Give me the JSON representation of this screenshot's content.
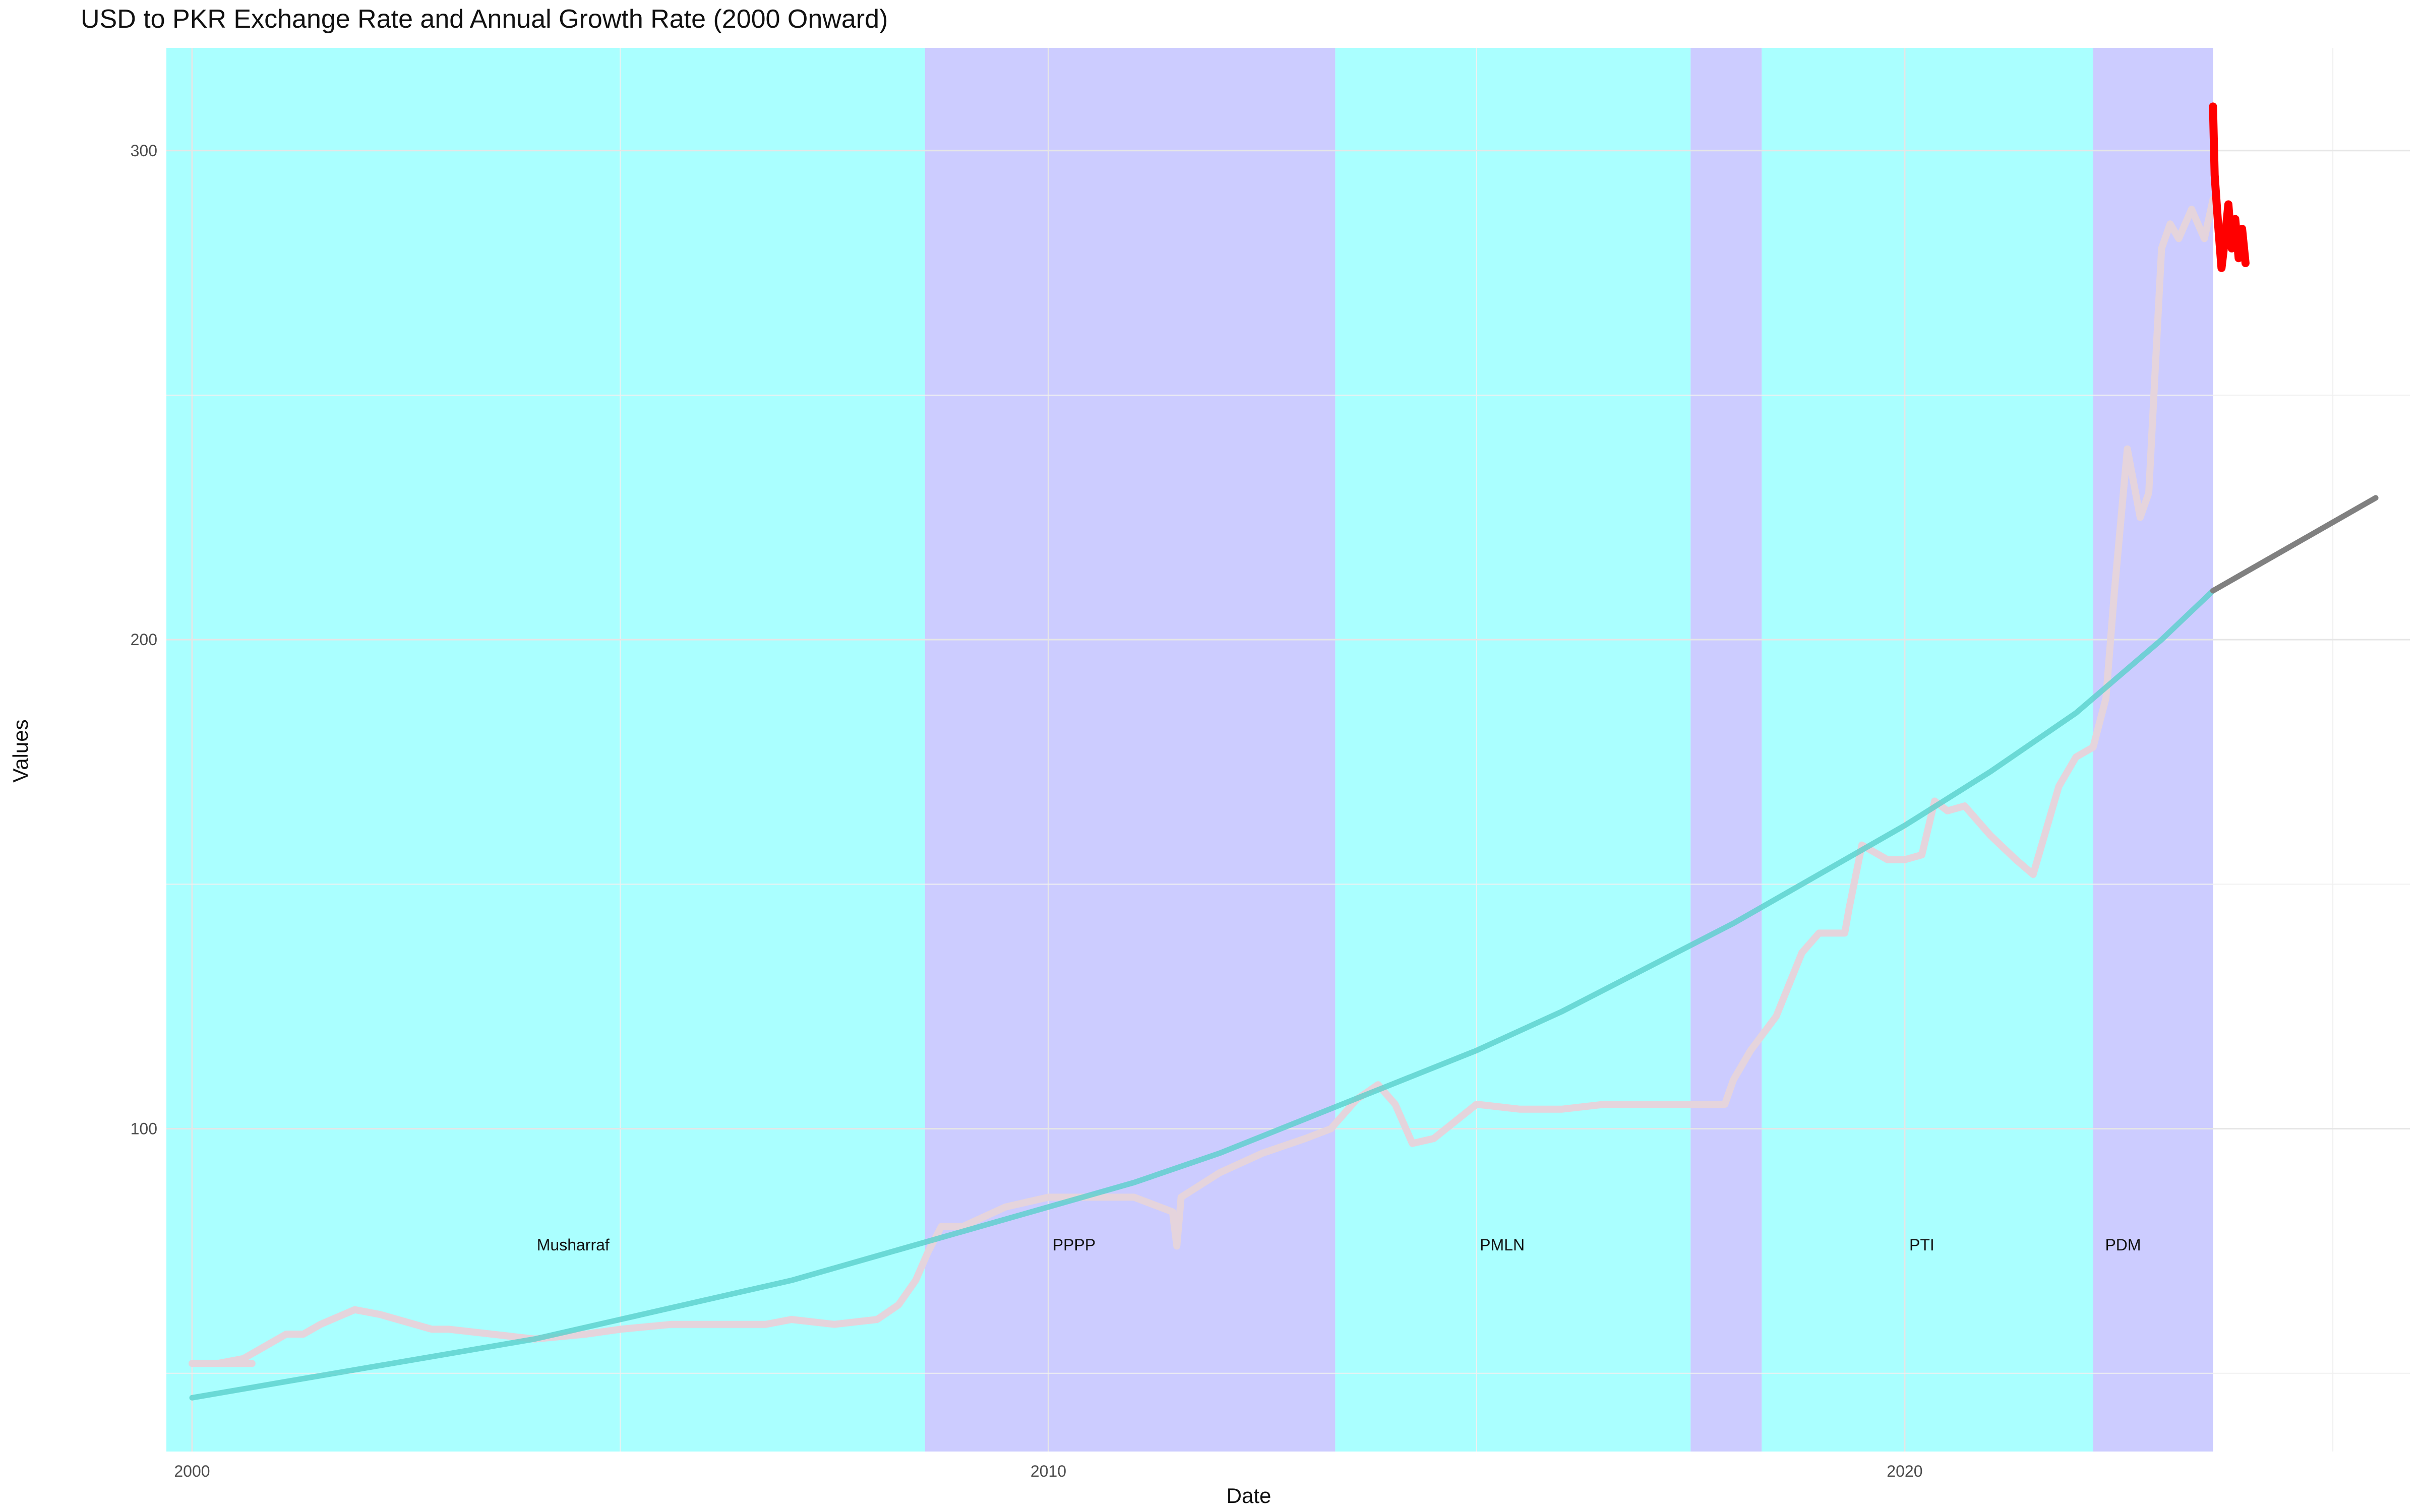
{
  "chart_data": {
    "type": "line",
    "title": "USD to PKR Exchange Rate and Annual Growth Rate (2000 Onward)",
    "xlabel": "Date",
    "ylabel": "Values",
    "xlim": [
      1999.7,
      2025.9
    ],
    "ylim": [
      34,
      321
    ],
    "x_ticks": [
      2000,
      2010,
      2020
    ],
    "y_ticks": [
      100,
      200,
      300
    ],
    "grid": true,
    "legend": "none",
    "periods": [
      {
        "name": "Musharraf",
        "start": 1999.7,
        "end": 2008.56,
        "color": "#aaffff",
        "label_x": 2004.45
      },
      {
        "name": "PPPP",
        "start": 2008.56,
        "end": 2013.35,
        "color": "#ccccff",
        "label_x": 2010.3
      },
      {
        "name": "PMLN",
        "start": 2013.35,
        "end": 2017.5,
        "color": "#aaffff",
        "label_x": 2015.3
      },
      {
        "name": "",
        "start": 2017.5,
        "end": 2018.33,
        "color": "#ccccff",
        "label_x": null
      },
      {
        "name": "PTI",
        "start": 2018.33,
        "end": 2022.2,
        "color": "#aaffff",
        "label_x": 2020.2
      },
      {
        "name": "PDM",
        "start": 2022.2,
        "end": 2023.6,
        "color": "#ccccff",
        "label_x": 2022.55
      }
    ],
    "period_label_y": 76,
    "series": [
      {
        "id": "exchange-rate",
        "color": "#e5d4dc",
        "x": [
          2000.0,
          2000.5,
          2000.7,
          2000.6,
          2000.4,
          2000.0,
          2000.3,
          2000.6,
          2000.9,
          2001.1,
          2001.3,
          2001.5,
          2001.9,
          2002.2,
          2002.8,
          2003.0,
          2003.5,
          2004.0,
          2004.6,
          2005.0,
          2005.6,
          2006.0,
          2006.7,
          2007.0,
          2007.5,
          2008.0,
          2008.25,
          2008.45,
          2008.6,
          2008.75,
          2009.0,
          2009.5,
          2010.0,
          2010.5,
          2011.0,
          2011.45,
          2011.5,
          2011.55,
          2012.0,
          2012.5,
          2013.0,
          2013.3,
          2013.6,
          2013.85,
          2014.05,
          2014.25,
          2014.5,
          2015.0,
          2015.5,
          2016.0,
          2016.5,
          2017.0,
          2017.5,
          2017.9,
          2018.0,
          2018.2,
          2018.5,
          2018.8,
          2019.0,
          2019.3,
          2019.35,
          2019.5,
          2019.8,
          2020.0,
          2020.2,
          2020.35,
          2020.5,
          2020.7,
          2021.0,
          2021.3,
          2021.5,
          2021.8,
          2022.0,
          2022.2,
          2022.35,
          2022.45,
          2022.6,
          2022.75,
          2022.85,
          2023.0,
          2023.1,
          2023.2,
          2023.35,
          2023.5,
          2023.6
        ],
        "y": [
          52,
          52,
          52,
          52,
          52,
          52,
          52,
          53,
          56,
          58,
          58,
          60,
          63,
          62,
          59,
          59,
          58,
          57,
          58,
          59,
          60,
          60,
          60,
          61,
          60,
          61,
          64,
          69,
          75,
          80,
          80,
          84,
          86,
          86,
          86,
          83,
          76,
          86,
          91,
          95,
          98,
          100,
          106,
          109,
          105,
          97,
          98,
          105,
          104,
          104,
          105,
          105,
          105,
          105,
          110,
          116,
          123,
          136,
          140,
          140,
          145,
          158,
          155,
          155,
          156,
          167,
          165,
          166,
          160,
          155,
          152,
          170,
          176,
          178,
          188,
          210,
          239,
          225,
          230,
          280,
          285,
          282,
          288,
          282,
          290
        ]
      },
      {
        "id": "forecast",
        "color": "#ff0000",
        "x": [
          2023.6,
          2023.62,
          2023.66,
          2023.7,
          2023.74,
          2023.78,
          2023.82,
          2023.86,
          2023.9,
          2023.94,
          2023.98
        ],
        "y": [
          309,
          295,
          285,
          276,
          282,
          289,
          280,
          286,
          278,
          284,
          277
        ]
      },
      {
        "id": "growth-trend",
        "color": "#5ad0cc",
        "x": [
          2000.0,
          2001.0,
          2002.0,
          2003.0,
          2004.0,
          2005.0,
          2006.0,
          2007.0,
          2008.0,
          2009.0,
          2010.0,
          2011.0,
          2012.0,
          2013.0,
          2014.0,
          2015.0,
          2016.0,
          2017.0,
          2018.0,
          2019.0,
          2020.0,
          2021.0,
          2022.0,
          2023.0,
          2023.6
        ],
        "y": [
          45,
          48,
          51,
          54,
          57,
          61,
          65,
          69,
          74,
          79,
          84,
          89,
          95,
          102,
          109,
          116,
          124,
          133,
          142,
          152,
          162,
          173,
          185,
          200,
          210
        ]
      },
      {
        "id": "growth-projection",
        "color": "#808080",
        "x": [
          2023.6,
          2024.0,
          2024.5,
          2025.0,
          2025.5
        ],
        "y": [
          210,
          214,
          219,
          224,
          229
        ]
      }
    ]
  }
}
